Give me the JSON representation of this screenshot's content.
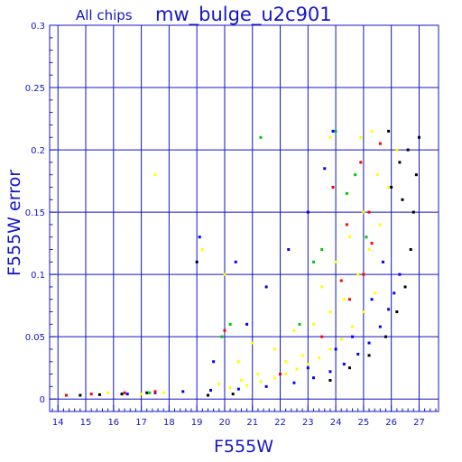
{
  "chart_data": {
    "type": "scatter",
    "subtitle": "All chips",
    "title": "mw_bulge_u2c901",
    "xlabel": "F555W",
    "ylabel": "F555W error",
    "xlim": [
      13.7,
      27.7
    ],
    "ylim": [
      -0.01,
      0.3
    ],
    "xticks": [
      "14",
      "15",
      "16",
      "17",
      "18",
      "19",
      "20",
      "21",
      "22",
      "23",
      "24",
      "25",
      "26",
      "27"
    ],
    "yticks": [
      "0",
      "0.05",
      "0.1",
      "0.15",
      "0.2",
      "0.25",
      "0.3"
    ],
    "grid": true,
    "colors": {
      "axis": "#1414c8",
      "grid": "#1414c8",
      "yellow": "#ffff00",
      "blue": "#0000ff",
      "black": "#000000",
      "red": "#ff0000",
      "green": "#00c800"
    },
    "series": [
      {
        "color": "yellow",
        "points": [
          [
            17.0,
            0.004
          ],
          [
            17.8,
            0.005
          ],
          [
            18.5,
            0.006
          ],
          [
            19.5,
            0.007
          ],
          [
            20.2,
            0.009
          ],
          [
            20.8,
            0.011
          ],
          [
            21.3,
            0.014
          ],
          [
            21.8,
            0.017
          ],
          [
            22.2,
            0.02
          ],
          [
            22.6,
            0.024
          ],
          [
            23.0,
            0.028
          ],
          [
            23.4,
            0.033
          ],
          [
            23.8,
            0.04
          ],
          [
            24.2,
            0.048
          ],
          [
            24.6,
            0.058
          ],
          [
            25.0,
            0.07
          ],
          [
            25.4,
            0.085
          ],
          [
            20.5,
            0.03
          ],
          [
            21.0,
            0.045
          ],
          [
            21.8,
            0.04
          ],
          [
            22.5,
            0.055
          ],
          [
            23.2,
            0.06
          ],
          [
            23.8,
            0.07
          ],
          [
            24.3,
            0.08
          ],
          [
            24.8,
            0.1
          ],
          [
            25.2,
            0.12
          ],
          [
            25.6,
            0.14
          ],
          [
            25.9,
            0.17
          ],
          [
            26.2,
            0.2
          ],
          [
            23.5,
            0.09
          ],
          [
            24.0,
            0.11
          ],
          [
            24.5,
            0.13
          ],
          [
            25.0,
            0.15
          ],
          [
            25.5,
            0.18
          ],
          [
            24.9,
            0.21
          ],
          [
            25.3,
            0.215
          ],
          [
            23.8,
            0.21
          ],
          [
            17.5,
            0.18
          ],
          [
            19.2,
            0.12
          ],
          [
            20.0,
            0.1
          ],
          [
            21.5,
            0.09
          ],
          [
            22.8,
            0.035
          ],
          [
            22.2,
            0.03
          ],
          [
            21.2,
            0.02
          ],
          [
            20.6,
            0.015
          ],
          [
            19.8,
            0.012
          ],
          [
            15.8,
            0.005
          ]
        ]
      },
      {
        "color": "blue",
        "points": [
          [
            16.5,
            0.004
          ],
          [
            17.5,
            0.005
          ],
          [
            18.5,
            0.006
          ],
          [
            19.5,
            0.007
          ],
          [
            20.5,
            0.008
          ],
          [
            21.5,
            0.01
          ],
          [
            22.5,
            0.013
          ],
          [
            23.2,
            0.017
          ],
          [
            23.8,
            0.022
          ],
          [
            24.3,
            0.028
          ],
          [
            24.8,
            0.036
          ],
          [
            25.2,
            0.045
          ],
          [
            25.6,
            0.058
          ],
          [
            25.9,
            0.072
          ],
          [
            26.1,
            0.085
          ],
          [
            26.3,
            0.1
          ],
          [
            22.0,
            0.02
          ],
          [
            23.0,
            0.025
          ],
          [
            24.0,
            0.04
          ],
          [
            24.6,
            0.05
          ],
          [
            25.3,
            0.08
          ],
          [
            25.7,
            0.11
          ],
          [
            19.6,
            0.03
          ],
          [
            20.8,
            0.06
          ],
          [
            21.5,
            0.09
          ],
          [
            22.3,
            0.12
          ],
          [
            23.0,
            0.15
          ],
          [
            23.6,
            0.185
          ],
          [
            23.9,
            0.215
          ],
          [
            19.1,
            0.13
          ],
          [
            20.4,
            0.11
          ]
        ]
      },
      {
        "color": "black",
        "points": [
          [
            14.8,
            0.003
          ],
          [
            15.5,
            0.0035
          ],
          [
            16.3,
            0.004
          ],
          [
            17.2,
            0.005
          ],
          [
            19.4,
            0.003
          ],
          [
            20.3,
            0.004
          ],
          [
            23.8,
            0.015
          ],
          [
            24.5,
            0.025
          ],
          [
            25.2,
            0.035
          ],
          [
            25.8,
            0.05
          ],
          [
            26.2,
            0.07
          ],
          [
            26.5,
            0.09
          ],
          [
            26.7,
            0.12
          ],
          [
            26.8,
            0.15
          ],
          [
            26.9,
            0.18
          ],
          [
            27.0,
            0.21
          ],
          [
            26.6,
            0.2
          ],
          [
            26.3,
            0.19
          ],
          [
            26.0,
            0.17
          ],
          [
            25.9,
            0.215
          ],
          [
            26.4,
            0.16
          ],
          [
            19.0,
            0.11
          ]
        ]
      },
      {
        "color": "red",
        "points": [
          [
            14.3,
            0.003
          ],
          [
            15.2,
            0.004
          ],
          [
            16.4,
            0.005
          ],
          [
            17.5,
            0.006
          ],
          [
            22.0,
            0.02
          ],
          [
            23.5,
            0.05
          ],
          [
            24.5,
            0.08
          ],
          [
            25.0,
            0.1
          ],
          [
            25.2,
            0.15
          ],
          [
            25.6,
            0.205
          ],
          [
            24.9,
            0.19
          ],
          [
            24.4,
            0.14
          ],
          [
            23.9,
            0.17
          ],
          [
            20.0,
            0.055
          ],
          [
            24.2,
            0.095
          ],
          [
            25.3,
            0.125
          ]
        ]
      },
      {
        "color": "green",
        "points": [
          [
            17.3,
            0.005
          ],
          [
            19.9,
            0.05
          ],
          [
            20.2,
            0.06
          ],
          [
            21.3,
            0.21
          ],
          [
            22.7,
            0.06
          ],
          [
            23.2,
            0.11
          ],
          [
            24.4,
            0.165
          ],
          [
            24.7,
            0.18
          ],
          [
            25.1,
            0.13
          ],
          [
            23.5,
            0.12
          ],
          [
            24.0,
            0.215
          ]
        ]
      }
    ]
  }
}
